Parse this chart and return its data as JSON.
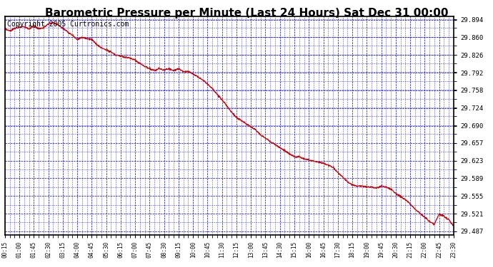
{
  "title": "Barometric Pressure per Minute (Last 24 Hours) Sat Dec 31 00:00",
  "copyright": "Copyright 2005 Curtronics.com",
  "line_color": "#cc0000",
  "background_color": "#ffffff",
  "plot_bg_color": "#ffffff",
  "grid_color": "#0000dd",
  "border_color": "#000000",
  "ylim": [
    29.48,
    29.901
  ],
  "yticks": [
    29.487,
    29.521,
    29.555,
    29.589,
    29.623,
    29.657,
    29.69,
    29.724,
    29.758,
    29.792,
    29.826,
    29.86,
    29.894
  ],
  "xtick_labels": [
    "00:15",
    "01:00",
    "01:45",
    "02:30",
    "03:15",
    "04:00",
    "04:45",
    "05:30",
    "06:15",
    "07:00",
    "07:45",
    "08:30",
    "09:15",
    "10:00",
    "10:45",
    "11:30",
    "12:15",
    "13:00",
    "13:45",
    "14:30",
    "15:15",
    "16:00",
    "16:45",
    "17:30",
    "18:15",
    "19:00",
    "19:45",
    "20:30",
    "21:15",
    "22:00",
    "22:45",
    "23:30"
  ],
  "title_fontsize": 11,
  "copyright_fontsize": 7,
  "key_times_min": [
    0,
    15,
    30,
    45,
    60,
    75,
    90,
    105,
    120,
    135,
    150,
    165,
    180,
    195,
    210,
    225,
    240,
    255,
    270,
    285,
    300,
    315,
    330,
    345,
    360,
    375,
    390,
    405,
    420,
    435,
    450,
    465,
    480,
    495,
    510,
    525,
    540,
    555,
    570,
    585,
    600,
    615,
    630,
    645,
    660,
    675,
    690,
    705,
    720,
    735,
    750,
    765,
    780,
    795,
    810,
    825,
    840,
    855,
    870,
    885,
    900,
    915,
    930,
    945,
    960,
    975,
    990,
    1005,
    1020,
    1035,
    1050,
    1065,
    1080,
    1095,
    1110,
    1125,
    1140,
    1155,
    1170,
    1185,
    1200,
    1215,
    1230,
    1245,
    1260,
    1275,
    1290,
    1305,
    1320,
    1335,
    1350,
    1365,
    1380,
    1395
  ],
  "key_values": [
    29.876,
    29.872,
    29.877,
    29.88,
    29.881,
    29.876,
    29.882,
    29.876,
    29.878,
    29.886,
    29.888,
    29.884,
    29.878,
    29.87,
    29.864,
    29.856,
    29.86,
    29.858,
    29.856,
    29.846,
    29.84,
    29.836,
    29.832,
    29.826,
    29.824,
    29.822,
    29.82,
    29.816,
    29.81,
    29.804,
    29.8,
    29.796,
    29.8,
    29.797,
    29.8,
    29.796,
    29.8,
    29.794,
    29.795,
    29.79,
    29.784,
    29.778,
    29.77,
    29.762,
    29.75,
    29.74,
    29.728,
    29.716,
    29.706,
    29.7,
    29.694,
    29.688,
    29.682,
    29.672,
    29.666,
    29.66,
    29.654,
    29.648,
    29.642,
    29.636,
    29.63,
    29.63,
    29.626,
    29.624,
    29.622,
    29.62,
    29.618,
    29.614,
    29.61,
    29.6,
    29.592,
    29.582,
    29.576,
    29.574,
    29.574,
    29.572,
    29.572,
    29.57,
    29.574,
    29.572,
    29.568,
    29.56,
    29.554,
    29.548,
    29.54,
    29.53,
    29.522,
    29.514,
    29.506,
    29.5,
    29.52,
    29.516,
    29.51,
    29.497
  ]
}
